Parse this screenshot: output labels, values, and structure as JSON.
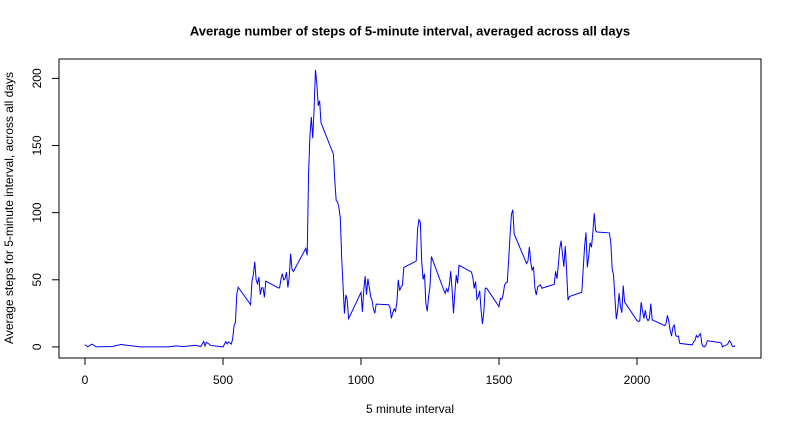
{
  "chart_data": {
    "type": "line",
    "title": "Average number of steps of 5-minute interval, averaged across all days",
    "x_label": "5 minute interval",
    "y_label": "Average steps for 5-minute interval, across all days",
    "color": "#0000ff",
    "x": [
      0,
      10,
      25,
      40,
      55,
      100,
      130,
      200,
      230,
      300,
      330,
      355,
      400,
      420,
      430,
      435,
      440,
      450,
      455,
      500,
      505,
      510,
      515,
      520,
      525,
      530,
      535,
      540,
      545,
      550,
      555,
      600,
      605,
      610,
      615,
      620,
      625,
      630,
      635,
      640,
      645,
      650,
      655,
      700,
      705,
      710,
      715,
      720,
      725,
      730,
      735,
      740,
      745,
      750,
      755,
      800,
      805,
      810,
      815,
      820,
      825,
      830,
      835,
      840,
      845,
      850,
      855,
      900,
      905,
      910,
      915,
      920,
      925,
      930,
      935,
      940,
      945,
      950,
      955,
      1000,
      1005,
      1010,
      1015,
      1020,
      1025,
      1030,
      1035,
      1040,
      1045,
      1050,
      1055,
      1100,
      1105,
      1110,
      1115,
      1120,
      1125,
      1130,
      1135,
      1140,
      1145,
      1150,
      1155,
      1200,
      1205,
      1210,
      1215,
      1220,
      1225,
      1230,
      1235,
      1240,
      1245,
      1250,
      1255,
      1300,
      1305,
      1310,
      1315,
      1320,
      1325,
      1330,
      1335,
      1340,
      1345,
      1350,
      1355,
      1400,
      1405,
      1410,
      1415,
      1420,
      1425,
      1430,
      1435,
      1440,
      1445,
      1450,
      1455,
      1500,
      1505,
      1510,
      1515,
      1520,
      1525,
      1530,
      1535,
      1540,
      1545,
      1550,
      1555,
      1600,
      1605,
      1610,
      1615,
      1620,
      1625,
      1630,
      1635,
      1640,
      1645,
      1650,
      1655,
      1700,
      1705,
      1710,
      1715,
      1720,
      1725,
      1730,
      1735,
      1740,
      1745,
      1750,
      1755,
      1800,
      1805,
      1810,
      1815,
      1820,
      1825,
      1830,
      1835,
      1840,
      1845,
      1850,
      1855,
      1900,
      1905,
      1910,
      1915,
      1920,
      1925,
      1930,
      1935,
      1940,
      1945,
      1950,
      1955,
      2000,
      2005,
      2010,
      2015,
      2020,
      2025,
      2030,
      2035,
      2040,
      2045,
      2050,
      2055,
      2100,
      2105,
      2110,
      2115,
      2120,
      2125,
      2130,
      2135,
      2140,
      2145,
      2150,
      2155,
      2200,
      2205,
      2210,
      2215,
      2220,
      2225,
      2230,
      2235,
      2240,
      2245,
      2250,
      2255,
      2300,
      2305,
      2310,
      2315,
      2320,
      2325,
      2330,
      2335,
      2340,
      2345,
      2350,
      2355
    ],
    "values": [
      1.7,
      0.1,
      2.1,
      0,
      0.1,
      0.3,
      1.8,
      0,
      0,
      0,
      0.8,
      0.2,
      1.2,
      0.3,
      4.1,
      0.7,
      3.5,
      2.1,
      1.1,
      0,
      1.9,
      4,
      2.2,
      3.7,
      2.9,
      2.1,
      6,
      16,
      18,
      39.4,
      44.5,
      31.5,
      49.3,
      53.8,
      63.5,
      50,
      47,
      52,
      39,
      44,
      44,
      37,
      49,
      44,
      44,
      50.5,
      54.5,
      49.9,
      50.9,
      55.7,
      44.3,
      52.3,
      69.5,
      57.8,
      56.2,
      73.4,
      68.2,
      129.4,
      157.5,
      171.2,
      155.4,
      177.3,
      206.2,
      195.9,
      179.6,
      183.4,
      167,
      143.5,
      124,
      109.1,
      108.1,
      103.7,
      96,
      66.2,
      45.2,
      24.8,
      38.8,
      35,
      21,
      40.6,
      26.1,
      42.4,
      52.7,
      38.9,
      50.8,
      44.3,
      37.4,
      34.7,
      28.3,
      25.1,
      31.9,
      31.4,
      29.7,
      21.3,
      25.5,
      28.4,
      26.5,
      33.4,
      50,
      42,
      44.6,
      46,
      59.2,
      63.9,
      87.7,
      94.8,
      92.8,
      63.4,
      50.2,
      54.5,
      32.4,
      26.5,
      37.7,
      45.1,
      67.3,
      42.3,
      39.9,
      43.3,
      41,
      46.2,
      56.4,
      42.8,
      25.1,
      40,
      53.5,
      47.3,
      60.8,
      55.8,
      52,
      43.6,
      48.7,
      35.5,
      37.5,
      41.8,
      27.5,
      17.1,
      26.1,
      43.6,
      43.8,
      30,
      36.1,
      35.5,
      38.8,
      46,
      47.8,
      48.1,
      65.3,
      82.9,
      98.7,
      102.1,
      84,
      62.1,
      64.1,
      74.5,
      63.2,
      56.9,
      59.8,
      43.9,
      38.6,
      44.7,
      45.5,
      46.2,
      43.7,
      46.6,
      56.3,
      50.7,
      61.2,
      73.4,
      79.1,
      68.9,
      59.7,
      75.1,
      56.5,
      34.8,
      37.5,
      40.7,
      58,
      74.7,
      85.3,
      59.3,
      67.8,
      77.7,
      74.2,
      85.3,
      99.5,
      86.6,
      85.6,
      84.9,
      77.8,
      58,
      53.4,
      36.3,
      20.7,
      27.4,
      40,
      30.2,
      25.5,
      45.7,
      33.5,
      19.6,
      19,
      19.3,
      33.3,
      26.8,
      21.2,
      27.3,
      21.3,
      19.5,
      21.3,
      32.3,
      20.2,
      15.9,
      17.2,
      23.5,
      19.2,
      12.5,
      8,
      14.7,
      16.3,
      8.7,
      7.8,
      8.1,
      2.6,
      1.5,
      3.7,
      4.8,
      8.5,
      7.1,
      8.7,
      9.8,
      2.2,
      0.3,
      0.1,
      1.6,
      4.6,
      3.3,
      2.8,
      0,
      0.8,
      1,
      1.6,
      2.6,
      4.7,
      3.3,
      0.6,
      0.2,
      1.1
    ],
    "xlim": [
      -94.2,
      2449.2
    ],
    "xticks": [
      0,
      500,
      1000,
      1500,
      2000
    ],
    "ylim": [
      -8.25,
      214.42
    ],
    "yticks": [
      0,
      50,
      100,
      150,
      200
    ]
  }
}
